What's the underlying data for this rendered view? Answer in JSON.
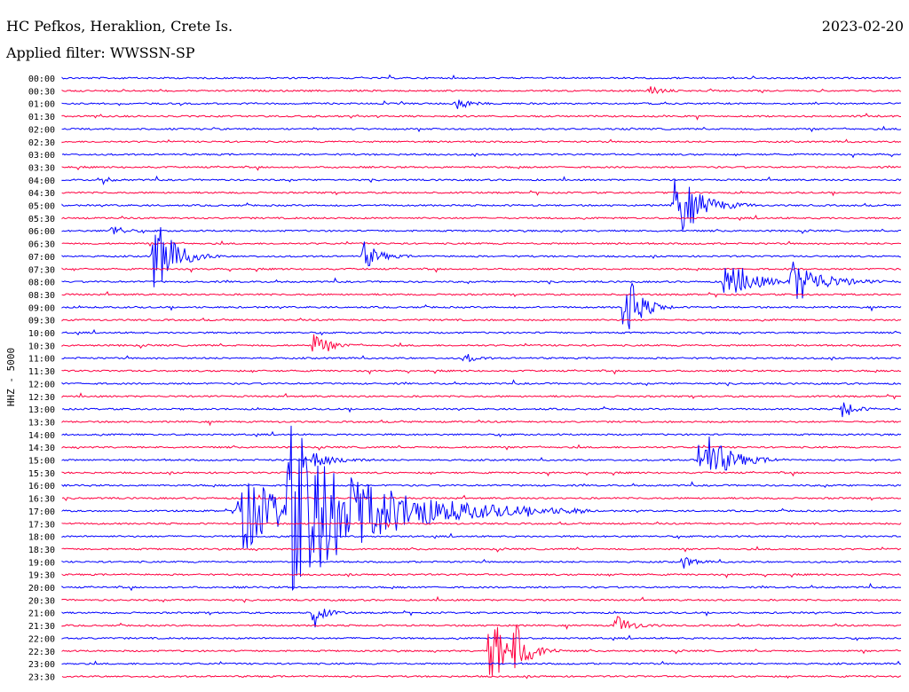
{
  "header": {
    "title": "HC Pefkos, Heraklion, Crete Is.",
    "date": "2023-02-20",
    "filter": "Applied filter: WWSSN-SP"
  },
  "chart_data": {
    "type": "line",
    "title": "HC Pefkos, Heraklion, Crete Is.",
    "ylabel": "HHZ - 5000",
    "row_labels": [
      "00:00",
      "00:30",
      "01:00",
      "01:30",
      "02:00",
      "02:30",
      "03:00",
      "03:30",
      "04:00",
      "04:30",
      "05:00",
      "05:30",
      "06:00",
      "06:30",
      "07:00",
      "07:30",
      "08:00",
      "08:30",
      "09:00",
      "09:30",
      "10:00",
      "10:30",
      "11:00",
      "11:30",
      "12:00",
      "12:30",
      "13:00",
      "13:30",
      "14:00",
      "14:30",
      "15:00",
      "15:30",
      "16:00",
      "16:30",
      "17:00",
      "17:30",
      "18:00",
      "18:30",
      "19:00",
      "19:30",
      "20:00",
      "20:30",
      "21:00",
      "21:30",
      "22:00",
      "22:30",
      "23:00",
      "23:30"
    ],
    "series_colors": [
      "#0000ff",
      "#ff0040"
    ],
    "events": [
      {
        "row": 1,
        "t": 0.7,
        "amp": 6,
        "dur": 0.02
      },
      {
        "row": 2,
        "t": 0.47,
        "amp": 10,
        "dur": 0.02
      },
      {
        "row": 8,
        "t": 0.05,
        "amp": 5,
        "dur": 0.01
      },
      {
        "row": 10,
        "t": 0.73,
        "amp": 40,
        "dur": 0.05
      },
      {
        "row": 12,
        "t": 0.06,
        "amp": 8,
        "dur": 0.02
      },
      {
        "row": 14,
        "t": 0.11,
        "amp": 48,
        "dur": 0.04
      },
      {
        "row": 14,
        "t": 0.36,
        "amp": 16,
        "dur": 0.03
      },
      {
        "row": 16,
        "t": 0.79,
        "amp": 28,
        "dur": 0.05
      },
      {
        "row": 16,
        "t": 0.87,
        "amp": 26,
        "dur": 0.06
      },
      {
        "row": 18,
        "t": 0.67,
        "amp": 48,
        "dur": 0.03
      },
      {
        "row": 21,
        "t": 0.3,
        "amp": 14,
        "dur": 0.03
      },
      {
        "row": 22,
        "t": 0.48,
        "amp": 6,
        "dur": 0.02
      },
      {
        "row": 26,
        "t": 0.93,
        "amp": 14,
        "dur": 0.02
      },
      {
        "row": 30,
        "t": 0.76,
        "amp": 40,
        "dur": 0.05
      },
      {
        "row": 30,
        "t": 0.3,
        "amp": 12,
        "dur": 0.04
      },
      {
        "row": 34,
        "t": 0.21,
        "amp": 55,
        "dur": 0.08
      },
      {
        "row": 34,
        "t": 0.27,
        "amp": 90,
        "dur": 0.18
      },
      {
        "row": 38,
        "t": 0.74,
        "amp": 8,
        "dur": 0.02
      },
      {
        "row": 42,
        "t": 0.3,
        "amp": 18,
        "dur": 0.02
      },
      {
        "row": 43,
        "t": 0.66,
        "amp": 12,
        "dur": 0.03
      },
      {
        "row": 45,
        "t": 0.51,
        "amp": 55,
        "dur": 0.03
      },
      {
        "row": 45,
        "t": 0.54,
        "amp": 36,
        "dur": 0.03
      }
    ]
  }
}
